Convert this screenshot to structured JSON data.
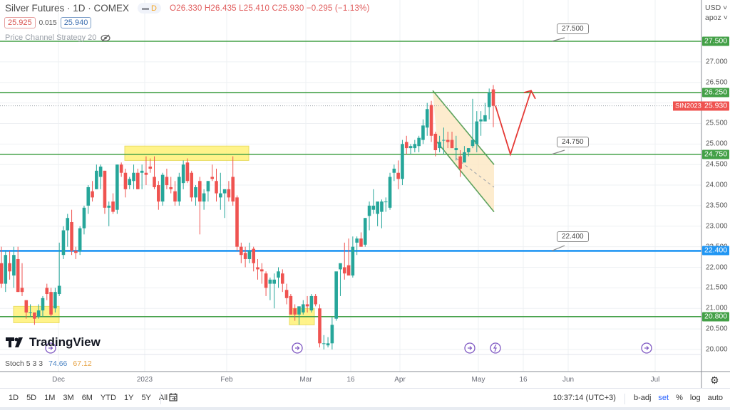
{
  "header": {
    "symbol": "Silver Futures · 1D · COMEX",
    "badge_label": "D",
    "ohlc": "O26.330 H26.435 L25.410 C25.930 −0.295 (−1.13%)",
    "bid": "25.925",
    "spread": "0.015",
    "ask": "25.940",
    "strategy_label": "Price Channel Strategy 20"
  },
  "price_axis": {
    "currency": "USD",
    "scale_mode": "apoz",
    "ticks": [
      "27.000",
      "26.500",
      "25.500",
      "25.000",
      "24.500",
      "24.000",
      "23.500",
      "23.000",
      "22.500",
      "22.000",
      "21.500",
      "21.000",
      "20.500",
      "20.000"
    ],
    "tags": [
      {
        "label": "27.500",
        "color": "#43a047"
      },
      {
        "label": "26.250",
        "color": "#43a047"
      },
      {
        "label": "25.930",
        "color": "#ef5350"
      },
      {
        "label": "24.750",
        "color": "#43a047"
      },
      {
        "label": "22.400",
        "color": "#2196f3"
      },
      {
        "label": "20.800",
        "color": "#43a047"
      }
    ],
    "symbol_tag": "SIN2023"
  },
  "time_axis": {
    "labels": [
      "Dec",
      "2023",
      "Feb",
      "Mar",
      "16",
      "Apr",
      "May",
      "16",
      "Jun",
      "Jul"
    ]
  },
  "callouts": {
    "c1": "27.500",
    "c2": "24.750",
    "c3": "22.400"
  },
  "indicator": {
    "name": "Stoch 5 3 3",
    "k": "74.66",
    "d": "67.12"
  },
  "logo": "TradingView",
  "bottom_bar": {
    "ranges": [
      "1D",
      "5D",
      "1M",
      "3M",
      "6M",
      "YTD",
      "1Y",
      "5Y",
      "All"
    ],
    "time": "10:37:14 (UTC+3)",
    "badj": "b-adj",
    "set": "set",
    "percent": "%",
    "log": "log",
    "auto": "auto"
  },
  "chart_data": {
    "type": "candlestick",
    "title": "Silver Futures · 1D · COMEX",
    "xlabel": "",
    "ylabel": "USD",
    "ylim": [
      19.8,
      27.9
    ],
    "x_tick_labels": [
      "Dec",
      "2023",
      "Feb",
      "Mar",
      "16",
      "Apr",
      "May",
      "16",
      "Jun",
      "Jul"
    ],
    "horizontal_levels": [
      {
        "price": 27.5,
        "color": "#43a047",
        "label": "27.500"
      },
      {
        "price": 26.25,
        "color": "#43a047",
        "label": "26.250"
      },
      {
        "price": 24.75,
        "color": "#43a047",
        "label": "24.750"
      },
      {
        "price": 22.4,
        "color": "#2196f3",
        "label": "22.400"
      },
      {
        "price": 20.8,
        "color": "#43a047",
        "label": "20.800"
      }
    ],
    "last_price": 25.93,
    "zones": [
      {
        "name": "resistance-zone",
        "price_range": [
          24.6,
          24.95
        ],
        "period": "mid Dec – early Feb"
      },
      {
        "name": "support-zone-nov",
        "price_range": [
          20.65,
          21.05
        ],
        "period": "mid Nov – late Nov"
      },
      {
        "name": "support-zone-mar",
        "price_range": [
          20.6,
          21.0
        ],
        "period": "late Feb – early Mar"
      }
    ],
    "channel": {
      "type": "descending",
      "from": "Apr 14",
      "to": "May 10",
      "upper": [
        26.3,
        24.5
      ],
      "lower": [
        25.0,
        23.35
      ]
    },
    "projection": {
      "points": [
        [
          25.93,
          "May 5"
        ],
        [
          24.75,
          "May 12"
        ],
        [
          26.3,
          "May 22"
        ]
      ],
      "color": "#e53935"
    },
    "candles": [
      {
        "o": 22.1,
        "h": 22.5,
        "l": 21.5,
        "c": 21.6
      },
      {
        "o": 21.6,
        "h": 22.4,
        "l": 21.4,
        "c": 22.3
      },
      {
        "o": 22.1,
        "h": 22.4,
        "l": 21.7,
        "c": 21.9
      },
      {
        "o": 21.8,
        "h": 22.5,
        "l": 21.5,
        "c": 22.3
      },
      {
        "o": 22.2,
        "h": 22.5,
        "l": 21.4,
        "c": 21.4
      },
      {
        "o": 21.5,
        "h": 22.1,
        "l": 21.3,
        "c": 21.4
      },
      {
        "o": 21.2,
        "h": 21.2,
        "l": 20.75,
        "c": 20.9
      },
      {
        "o": 20.9,
        "h": 21.1,
        "l": 20.8,
        "c": 20.9
      },
      {
        "o": 20.9,
        "h": 20.9,
        "l": 20.6,
        "c": 20.75
      },
      {
        "o": 20.8,
        "h": 21.1,
        "l": 20.75,
        "c": 20.95
      },
      {
        "o": 20.95,
        "h": 21.3,
        "l": 20.8,
        "c": 21.25
      },
      {
        "o": 21.5,
        "h": 21.6,
        "l": 21.2,
        "c": 21.35
      },
      {
        "o": 21.4,
        "h": 21.5,
        "l": 20.8,
        "c": 20.85
      },
      {
        "o": 21.0,
        "h": 21.5,
        "l": 20.9,
        "c": 21.4
      },
      {
        "o": 21.35,
        "h": 22.6,
        "l": 21.3,
        "c": 21.55
      },
      {
        "o": 22.3,
        "h": 23.0,
        "l": 22.2,
        "c": 22.9
      },
      {
        "o": 22.9,
        "h": 23.3,
        "l": 22.5,
        "c": 23.2
      },
      {
        "o": 23.1,
        "h": 23.4,
        "l": 22.3,
        "c": 22.4
      },
      {
        "o": 22.4,
        "h": 22.5,
        "l": 22.2,
        "c": 22.35
      },
      {
        "o": 22.4,
        "h": 23.0,
        "l": 22.3,
        "c": 22.95
      },
      {
        "o": 22.95,
        "h": 23.5,
        "l": 22.8,
        "c": 23.45
      },
      {
        "o": 23.5,
        "h": 24.0,
        "l": 23.3,
        "c": 23.95
      },
      {
        "o": 23.85,
        "h": 24.1,
        "l": 23.6,
        "c": 23.7
      },
      {
        "o": 23.9,
        "h": 24.5,
        "l": 23.9,
        "c": 24.35
      },
      {
        "o": 24.2,
        "h": 24.5,
        "l": 23.9,
        "c": 24.45
      },
      {
        "o": 24.35,
        "h": 24.35,
        "l": 23.3,
        "c": 23.45
      },
      {
        "o": 23.45,
        "h": 23.6,
        "l": 23.0,
        "c": 23.5
      },
      {
        "o": 23.6,
        "h": 23.8,
        "l": 23.3,
        "c": 23.35
      },
      {
        "o": 23.4,
        "h": 24.5,
        "l": 23.3,
        "c": 24.5
      },
      {
        "o": 24.5,
        "h": 24.55,
        "l": 24.2,
        "c": 24.3
      },
      {
        "o": 24.3,
        "h": 24.4,
        "l": 23.7,
        "c": 23.9
      },
      {
        "o": 24.0,
        "h": 24.2,
        "l": 23.9,
        "c": 24.15
      },
      {
        "o": 24.1,
        "h": 24.5,
        "l": 23.9,
        "c": 24.3
      },
      {
        "o": 24.3,
        "h": 24.4,
        "l": 23.9,
        "c": 23.9
      },
      {
        "o": 24.3,
        "h": 24.5,
        "l": 23.9,
        "c": 24.35
      },
      {
        "o": 24.3,
        "h": 24.7,
        "l": 24.0,
        "c": 24.25
      },
      {
        "o": 24.45,
        "h": 24.65,
        "l": 24.3,
        "c": 24.4
      },
      {
        "o": 24.2,
        "h": 24.7,
        "l": 23.9,
        "c": 23.95
      },
      {
        "o": 24.0,
        "h": 24.1,
        "l": 23.4,
        "c": 23.6
      },
      {
        "o": 23.6,
        "h": 24.3,
        "l": 23.5,
        "c": 24.25
      },
      {
        "o": 24.2,
        "h": 24.4,
        "l": 23.9,
        "c": 24.0
      },
      {
        "o": 23.95,
        "h": 24.2,
        "l": 23.8,
        "c": 23.9
      },
      {
        "o": 23.85,
        "h": 24.1,
        "l": 23.5,
        "c": 23.6
      },
      {
        "o": 23.6,
        "h": 24.3,
        "l": 23.5,
        "c": 24.2
      },
      {
        "o": 24.05,
        "h": 24.6,
        "l": 23.9,
        "c": 24.5
      },
      {
        "o": 24.55,
        "h": 24.65,
        "l": 24.05,
        "c": 24.1
      },
      {
        "o": 24.3,
        "h": 24.35,
        "l": 23.6,
        "c": 23.7
      },
      {
        "o": 23.7,
        "h": 24.0,
        "l": 23.5,
        "c": 23.95
      },
      {
        "o": 24.1,
        "h": 24.2,
        "l": 22.8,
        "c": 23.6
      },
      {
        "o": 23.6,
        "h": 23.9,
        "l": 23.4,
        "c": 23.8
      },
      {
        "o": 23.85,
        "h": 24.1,
        "l": 23.6,
        "c": 24.1
      },
      {
        "o": 24.2,
        "h": 24.5,
        "l": 24.1,
        "c": 24.15
      },
      {
        "o": 24.1,
        "h": 24.4,
        "l": 23.6,
        "c": 23.8
      },
      {
        "o": 23.7,
        "h": 24.3,
        "l": 23.4,
        "c": 23.8
      },
      {
        "o": 23.8,
        "h": 23.9,
        "l": 23.2,
        "c": 23.9
      },
      {
        "o": 23.9,
        "h": 24.1,
        "l": 23.6,
        "c": 23.7
      },
      {
        "o": 24.2,
        "h": 24.7,
        "l": 23.5,
        "c": 23.6
      },
      {
        "o": 23.7,
        "h": 23.75,
        "l": 22.4,
        "c": 22.5
      },
      {
        "o": 22.5,
        "h": 22.6,
        "l": 22.1,
        "c": 22.3
      },
      {
        "o": 22.35,
        "h": 22.5,
        "l": 22.0,
        "c": 22.2
      },
      {
        "o": 22.2,
        "h": 22.6,
        "l": 22.1,
        "c": 22.4
      },
      {
        "o": 22.45,
        "h": 22.5,
        "l": 21.9,
        "c": 22.1
      },
      {
        "o": 22.0,
        "h": 22.2,
        "l": 21.7,
        "c": 21.95
      },
      {
        "o": 21.95,
        "h": 22.1,
        "l": 21.6,
        "c": 21.9
      },
      {
        "o": 21.85,
        "h": 21.9,
        "l": 21.3,
        "c": 21.5
      },
      {
        "o": 21.6,
        "h": 21.75,
        "l": 21.2,
        "c": 21.7
      },
      {
        "o": 21.6,
        "h": 21.85,
        "l": 21.0,
        "c": 21.7
      },
      {
        "o": 21.75,
        "h": 22.0,
        "l": 21.5,
        "c": 21.9
      },
      {
        "o": 21.85,
        "h": 21.95,
        "l": 21.4,
        "c": 21.6
      },
      {
        "o": 21.45,
        "h": 21.6,
        "l": 21.1,
        "c": 21.25
      },
      {
        "o": 21.3,
        "h": 21.35,
        "l": 20.85,
        "c": 20.85
      },
      {
        "o": 21.0,
        "h": 21.1,
        "l": 20.7,
        "c": 20.85
      },
      {
        "o": 20.85,
        "h": 21.05,
        "l": 20.6,
        "c": 21.05
      },
      {
        "o": 20.9,
        "h": 21.2,
        "l": 20.85,
        "c": 21.1
      },
      {
        "o": 21.1,
        "h": 21.3,
        "l": 20.9,
        "c": 21.05
      },
      {
        "o": 20.95,
        "h": 21.35,
        "l": 20.9,
        "c": 21.3
      },
      {
        "o": 21.3,
        "h": 21.35,
        "l": 21.05,
        "c": 21.1
      },
      {
        "o": 21.0,
        "h": 21.1,
        "l": 20.05,
        "c": 20.15
      },
      {
        "o": 20.15,
        "h": 20.35,
        "l": 20.0,
        "c": 20.15
      },
      {
        "o": 20.1,
        "h": 20.3,
        "l": 20.05,
        "c": 20.15
      },
      {
        "o": 20.15,
        "h": 20.8,
        "l": 20.0,
        "c": 20.6
      },
      {
        "o": 20.75,
        "h": 21.0,
        "l": 20.7,
        "c": 21.9
      },
      {
        "o": 21.95,
        "h": 22.0,
        "l": 21.3,
        "c": 22.1
      },
      {
        "o": 22.0,
        "h": 22.6,
        "l": 21.7,
        "c": 21.85
      },
      {
        "o": 22.05,
        "h": 22.7,
        "l": 21.9,
        "c": 21.8
      },
      {
        "o": 21.8,
        "h": 22.75,
        "l": 21.75,
        "c": 22.5
      },
      {
        "o": 22.6,
        "h": 22.75,
        "l": 22.3,
        "c": 22.7
      },
      {
        "o": 22.7,
        "h": 22.85,
        "l": 22.5,
        "c": 22.5
      },
      {
        "o": 22.55,
        "h": 23.2,
        "l": 22.5,
        "c": 23.2
      },
      {
        "o": 23.25,
        "h": 23.6,
        "l": 22.9,
        "c": 23.5
      },
      {
        "o": 23.4,
        "h": 23.9,
        "l": 23.3,
        "c": 23.5
      },
      {
        "o": 23.3,
        "h": 23.55,
        "l": 23.0,
        "c": 23.6
      },
      {
        "o": 23.35,
        "h": 23.65,
        "l": 22.95,
        "c": 23.6
      },
      {
        "o": 23.6,
        "h": 23.7,
        "l": 23.35,
        "c": 23.6
      },
      {
        "o": 23.45,
        "h": 24.3,
        "l": 23.4,
        "c": 24.2
      },
      {
        "o": 24.3,
        "h": 24.5,
        "l": 24.1,
        "c": 24.4
      },
      {
        "o": 24.3,
        "h": 24.6,
        "l": 23.9,
        "c": 24.15
      },
      {
        "o": 24.15,
        "h": 25.1,
        "l": 24.0,
        "c": 25.0
      },
      {
        "o": 25.05,
        "h": 25.2,
        "l": 24.75,
        "c": 24.9
      },
      {
        "o": 24.9,
        "h": 25.0,
        "l": 24.75,
        "c": 24.95
      },
      {
        "o": 24.9,
        "h": 25.1,
        "l": 24.8,
        "c": 25.0
      },
      {
        "o": 24.95,
        "h": 25.2,
        "l": 24.8,
        "c": 25.15
      },
      {
        "o": 25.1,
        "h": 25.6,
        "l": 25.0,
        "c": 25.45
      },
      {
        "o": 25.4,
        "h": 26.0,
        "l": 25.2,
        "c": 25.85
      },
      {
        "o": 25.95,
        "h": 26.05,
        "l": 25.05,
        "c": 25.2
      },
      {
        "o": 25.25,
        "h": 25.3,
        "l": 24.7,
        "c": 24.85
      },
      {
        "o": 24.9,
        "h": 25.2,
        "l": 24.8,
        "c": 25.05
      },
      {
        "o": 25.1,
        "h": 25.4,
        "l": 24.75,
        "c": 25.1
      },
      {
        "o": 25.1,
        "h": 25.3,
        "l": 24.9,
        "c": 25.05
      },
      {
        "o": 25.1,
        "h": 25.3,
        "l": 24.9,
        "c": 24.9
      },
      {
        "o": 24.85,
        "h": 25.2,
        "l": 24.6,
        "c": 24.9
      },
      {
        "o": 24.7,
        "h": 24.85,
        "l": 24.2,
        "c": 24.4
      },
      {
        "o": 24.55,
        "h": 24.95,
        "l": 24.75,
        "c": 24.8
      },
      {
        "o": 24.8,
        "h": 24.9,
        "l": 24.7,
        "c": 24.9
      },
      {
        "o": 24.95,
        "h": 26.1,
        "l": 24.9,
        "c": 25.1
      },
      {
        "o": 25.0,
        "h": 25.8,
        "l": 24.8,
        "c": 25.55
      },
      {
        "o": 25.55,
        "h": 25.8,
        "l": 25.2,
        "c": 25.6
      },
      {
        "o": 25.55,
        "h": 26.0,
        "l": 25.55,
        "c": 25.7
      },
      {
        "o": 25.9,
        "h": 26.35,
        "l": 25.6,
        "c": 26.25
      },
      {
        "o": 26.33,
        "h": 26.435,
        "l": 25.41,
        "c": 25.93
      }
    ]
  }
}
